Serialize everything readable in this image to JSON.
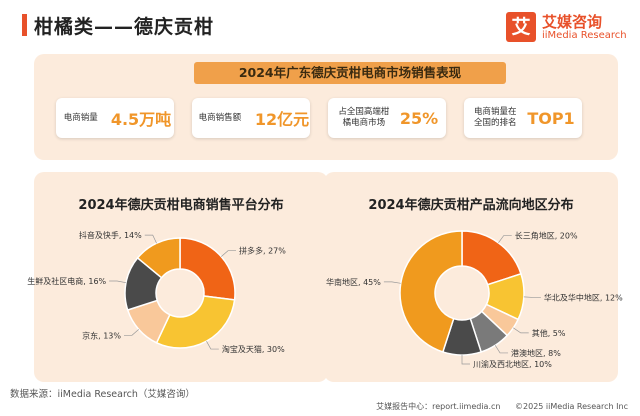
{
  "header": {
    "title": "柑橘类——德庆贡柑"
  },
  "brand": {
    "logo_char": "艾",
    "name_cn": "艾媒咨询",
    "name_en": "iiMedia Research"
  },
  "summary": {
    "heading": "2024年广东德庆贡柑电商市场销售表现",
    "kpis": [
      {
        "label": "电商销量",
        "value": "4.5万吨"
      },
      {
        "label": "电商销售额",
        "value": "12亿元"
      },
      {
        "label": "占全国高端柑橘电商市场",
        "value": "25%"
      },
      {
        "label": "电商销量在全国的排名",
        "value": "TOP1"
      }
    ]
  },
  "chart_data": [
    {
      "type": "pie",
      "title": "2024年德庆贡柑电商销售平台分布",
      "categories": [
        "拼多多",
        "淘宝及天猫",
        "京东",
        "生鲜及社区电商",
        "抖音及快手"
      ],
      "values": [
        27,
        30,
        13,
        16,
        14
      ],
      "labels": [
        "拼多多, 27%",
        "淘宝及天猫, 30%",
        "京东, 13%",
        "生鲜及社区电商, 16%",
        "抖音及快手, 14%"
      ],
      "colors": [
        "#f06416",
        "#f8c432",
        "#f9c89a",
        "#4a4a4a",
        "#f09a1e"
      ]
    },
    {
      "type": "pie",
      "title": "2024年德庆贡柑产品流向地区分布",
      "categories": [
        "长三角地区",
        "华北及华中地区",
        "其他",
        "港澳地区",
        "川渝及西北地区",
        "华南地区"
      ],
      "values": [
        20,
        12,
        5,
        8,
        10,
        45
      ],
      "labels": [
        "长三角地区, 20%",
        "华北及华中地区, 12%",
        "其他, 5%",
        "港澳地区, 8%",
        "川渝及西北地区, 10%",
        "华南地区, 45%"
      ],
      "colors": [
        "#f06416",
        "#f8c432",
        "#f9c89a",
        "#7a7a7a",
        "#4a4a4a",
        "#f09a1e"
      ]
    }
  ],
  "footer": {
    "source": "数据来源：iiMedia Research（艾媒咨询）",
    "center": "艾媒报告中心：report.iimedia.cn",
    "copyright": "©2025  iiMedia Research  Inc"
  }
}
